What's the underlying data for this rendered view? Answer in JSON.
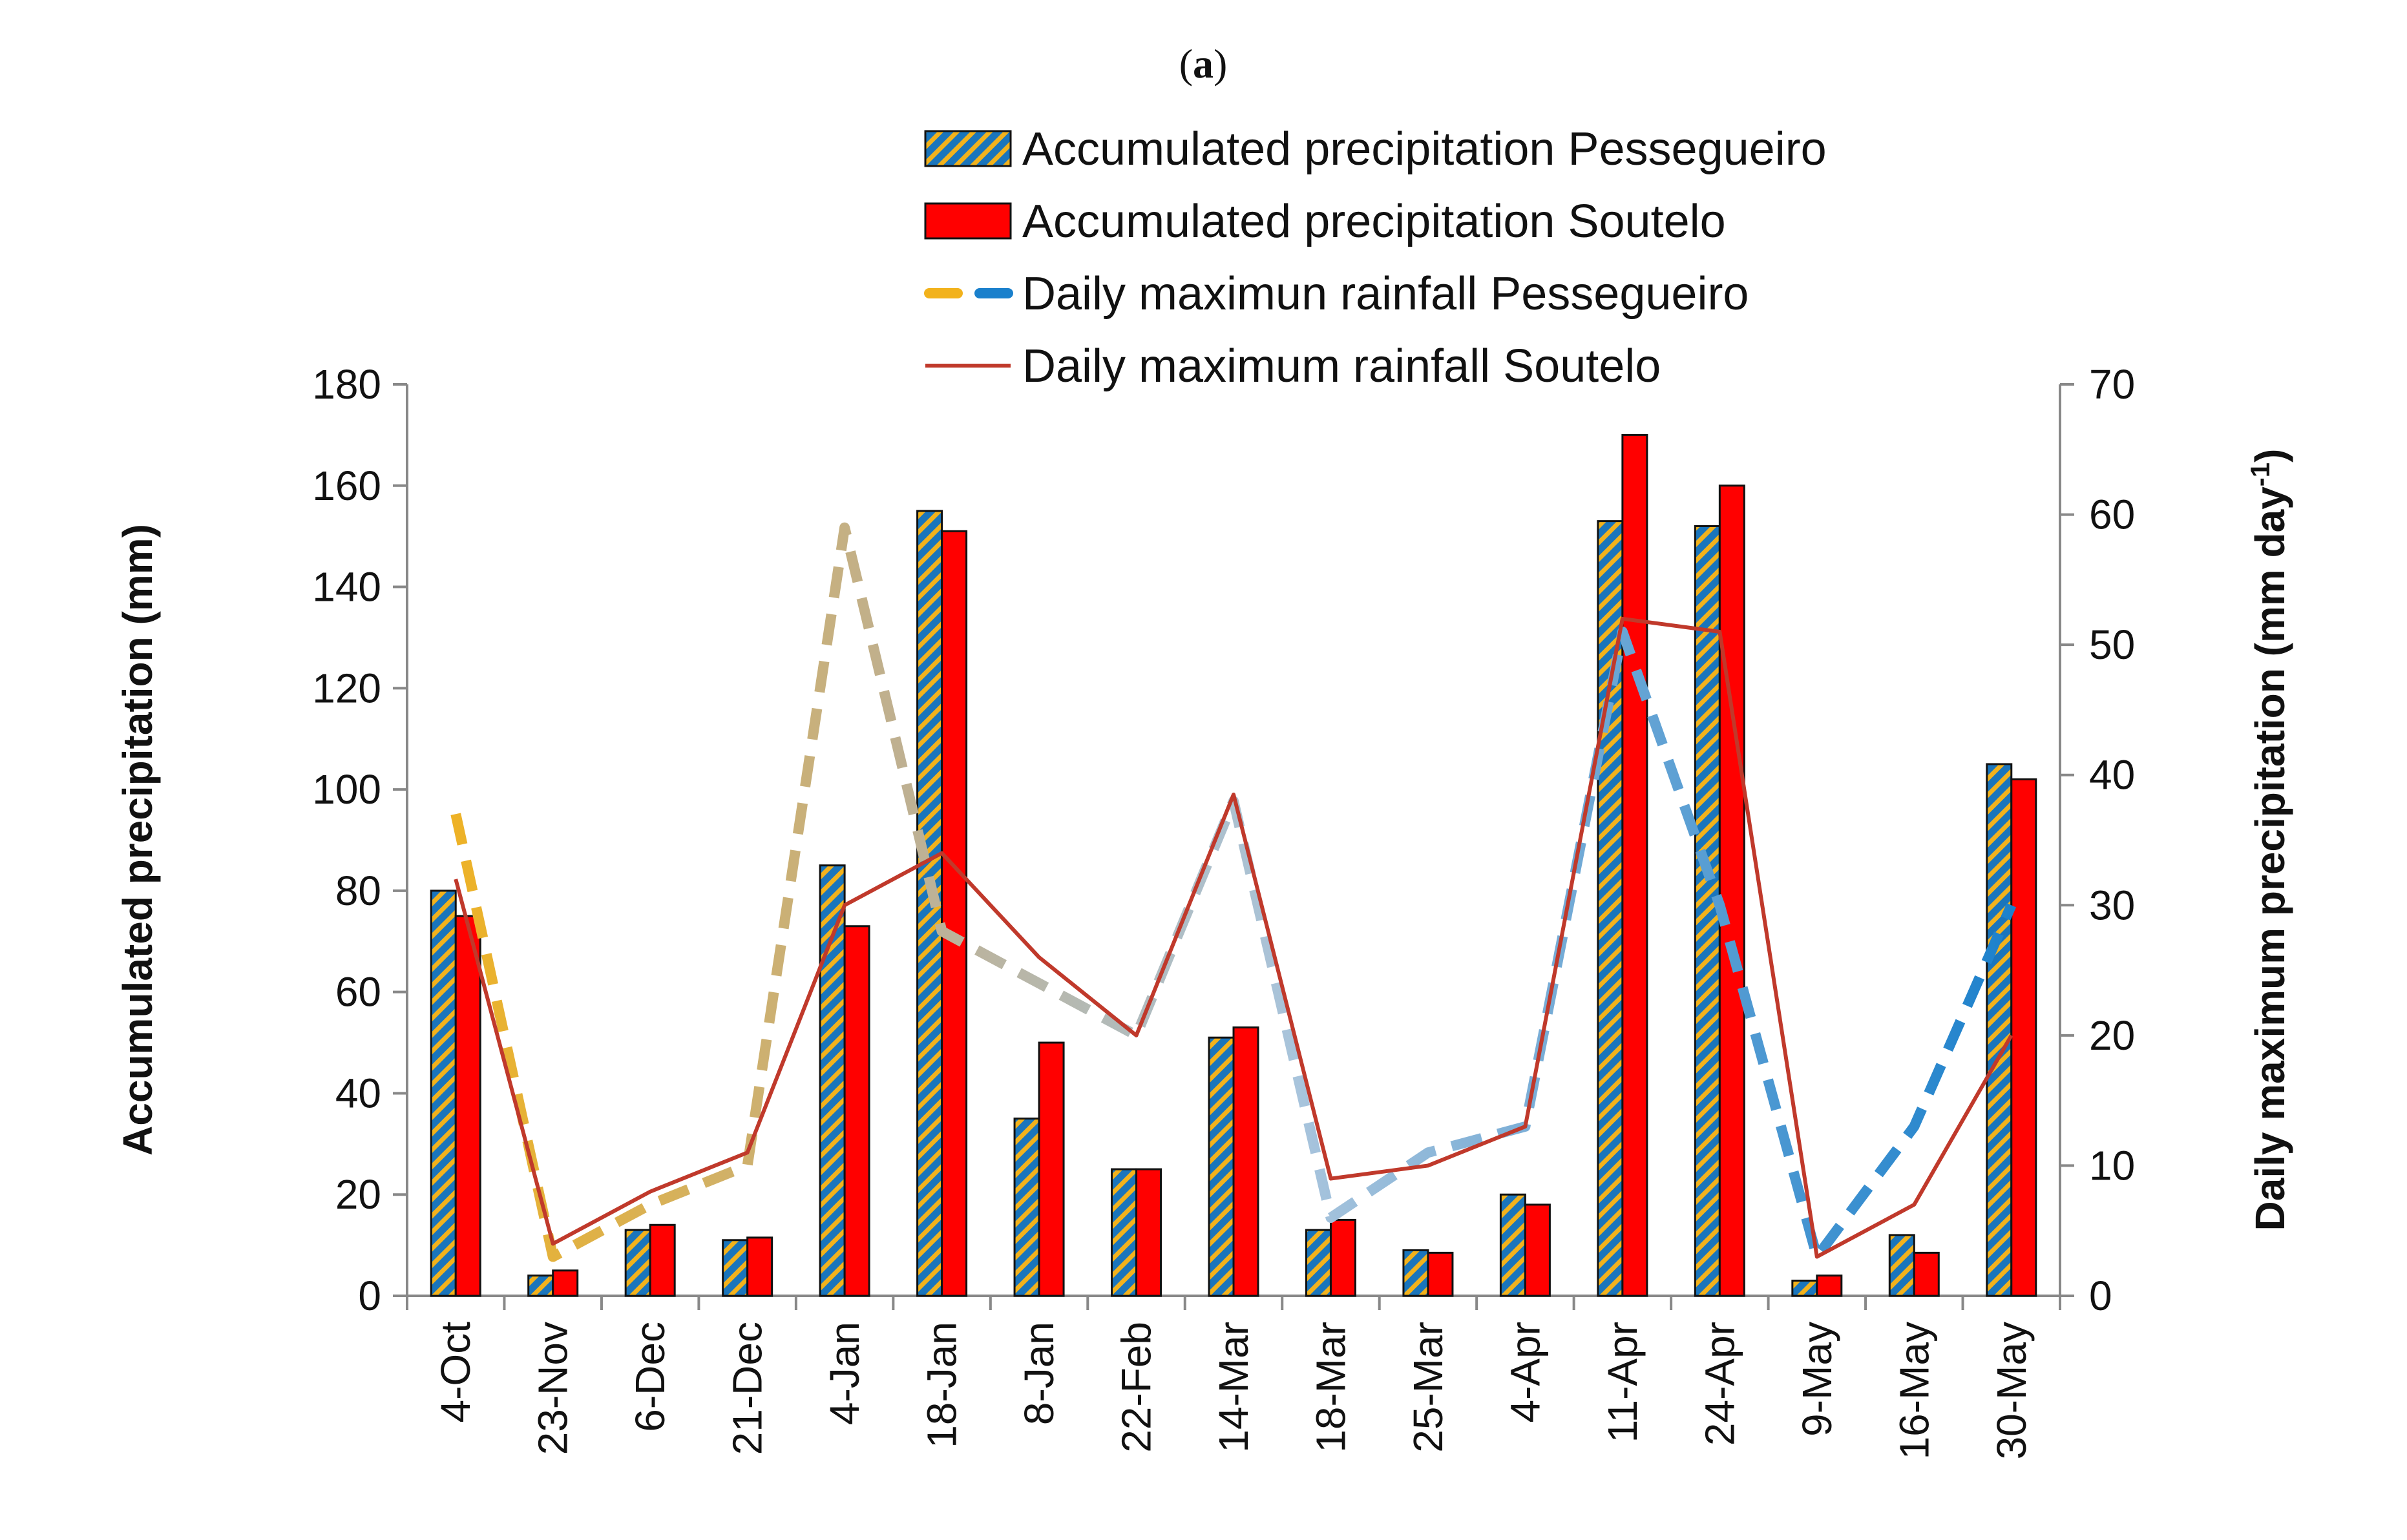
{
  "panel_label": {
    "open": "(",
    "letter": "a",
    "close": ")"
  },
  "chart_data": {
    "type": "bar",
    "categories": [
      "4-Oct",
      "23-Nov",
      "6-Dec",
      "21-Dec",
      "4-Jan",
      "18-Jan",
      "8-Jan",
      "22-Feb",
      "14-Mar",
      "18-Mar",
      "25-Mar",
      "4-Apr",
      "11-Apr",
      "24-Apr",
      "9-May",
      "16-May",
      "30-May"
    ],
    "series": [
      {
        "name": "Accumulated precipitation Pessegueiro",
        "kind": "bar",
        "axis": "left",
        "color": "#1a75bc",
        "stripe_color": "#f2b21c",
        "values": [
          80,
          4,
          13,
          11,
          85,
          155,
          35,
          25,
          51,
          13,
          9,
          20,
          153,
          152,
          3,
          12,
          105
        ]
      },
      {
        "name": "Accumulated precipitation Soutelo",
        "kind": "bar",
        "axis": "left",
        "color": "#ff0000",
        "values": [
          75,
          5,
          14,
          11.5,
          73,
          151,
          50,
          25,
          53,
          15,
          8.5,
          18,
          170,
          160,
          4,
          8.5,
          102
        ]
      },
      {
        "name": "Daily maximun rainfall Pessegueiro",
        "kind": "line",
        "axis": "right",
        "style": "dashed",
        "gradient": [
          "#f2b21c",
          "#bfb090",
          "#a8c4dc",
          "#1a80cc"
        ],
        "values": [
          37,
          3,
          7,
          10,
          59,
          28,
          24,
          20,
          38,
          6,
          11,
          13,
          51,
          30,
          3,
          13,
          30
        ]
      },
      {
        "name": "Daily maximum rainfall Soutelo",
        "kind": "line",
        "axis": "right",
        "style": "solid",
        "color": "#c0392b",
        "values": [
          32,
          4,
          8,
          11,
          30,
          34,
          26,
          20,
          38.5,
          9,
          10,
          13,
          52,
          51,
          3,
          7,
          20
        ]
      }
    ],
    "ylabel": "Accumulated precipitation (mm)",
    "y2label": {
      "main": "Daily maximum precipitation (mm day",
      "sup": "-1",
      "close": ")"
    },
    "ylim": [
      0,
      180
    ],
    "yticks": [
      0,
      20,
      40,
      60,
      80,
      100,
      120,
      140,
      160,
      180
    ],
    "y2lim": [
      0,
      70
    ],
    "y2ticks": [
      0,
      10,
      20,
      30,
      40,
      50,
      60,
      70
    ],
    "legend_placement": "top-center",
    "grid": false
  }
}
